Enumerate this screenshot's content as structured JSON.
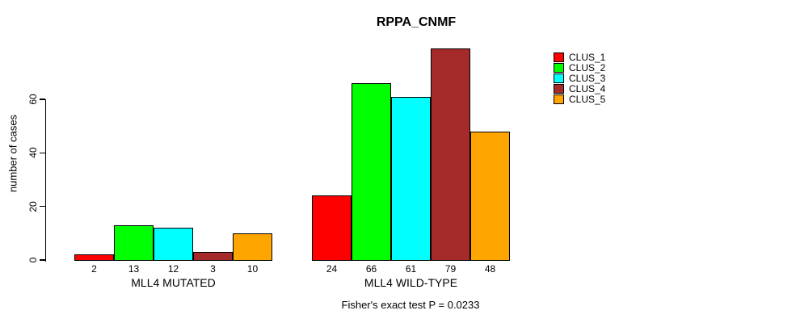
{
  "chart_data": {
    "type": "bar",
    "title": "RPPA_CNMF",
    "ylabel": "number of cases",
    "xlabel": "",
    "yticks": [
      0,
      20,
      40,
      60
    ],
    "ylim": [
      0,
      79
    ],
    "grid": false,
    "legend_position": "right-inside",
    "categories": [
      "MLL4 MUTATED",
      "MLL4 WILD-TYPE"
    ],
    "series": [
      {
        "name": "CLUS_1",
        "color": "#ff0000",
        "values": [
          2,
          24
        ]
      },
      {
        "name": "CLUS_2",
        "color": "#00ff00",
        "values": [
          13,
          66
        ]
      },
      {
        "name": "CLUS_3",
        "color": "#00ffff",
        "values": [
          12,
          61
        ]
      },
      {
        "name": "CLUS_4",
        "color": "#a52a2a",
        "values": [
          3,
          79
        ]
      },
      {
        "name": "CLUS_5",
        "color": "#ffa500",
        "values": [
          10,
          48
        ]
      }
    ],
    "bar_value_labels": [
      [
        2,
        13,
        12,
        3,
        10
      ],
      [
        24,
        66,
        61,
        79,
        48
      ]
    ],
    "annotation": "Fisher's exact test P = 0.0233"
  }
}
